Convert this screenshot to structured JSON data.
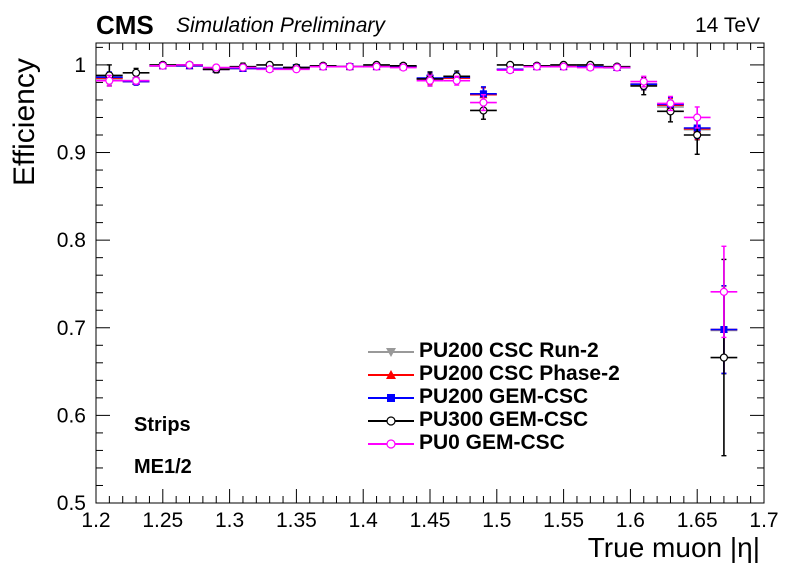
{
  "header": {
    "experiment": "CMS",
    "status": "Simulation Preliminary",
    "energy": "14 TeV"
  },
  "annotations": {
    "strips": "Strips",
    "station": "ME1/2"
  },
  "chart_data": {
    "type": "scatter",
    "title": "",
    "xlabel": "True muon |η|",
    "ylabel": "Efficiency",
    "xlim": [
      1.2,
      1.7
    ],
    "ylim": [
      0.5,
      1.025
    ],
    "xticks": [
      1.2,
      1.25,
      1.3,
      1.35,
      1.4,
      1.45,
      1.5,
      1.55,
      1.6,
      1.65,
      1.7
    ],
    "xtick_labels": [
      "1.2",
      "1.25",
      "1.3",
      "1.35",
      "1.4",
      "1.45",
      "1.5",
      "1.55",
      "1.6",
      "1.65",
      "1.7"
    ],
    "yticks": [
      0.5,
      0.6,
      0.7,
      0.8,
      0.9,
      1.0
    ],
    "ytick_labels": [
      "0.5",
      "0.6",
      "0.7",
      "0.8",
      "0.9",
      "1"
    ],
    "grid": false,
    "legend_position": "bottom-center",
    "series": [
      {
        "name": "PU200 CSC Run-2",
        "color": "#999999",
        "marker": "triangle-down",
        "x": [
          1.21,
          1.23,
          1.25,
          1.27,
          1.29,
          1.31,
          1.33,
          1.35,
          1.37,
          1.39,
          1.41,
          1.43,
          1.45,
          1.47,
          1.49,
          1.51,
          1.53,
          1.55,
          1.57,
          1.59,
          1.61,
          1.63,
          1.65,
          1.67
        ],
        "y": [
          0.984,
          0.982,
          0.999,
          0.999,
          0.995,
          0.996,
          0.996,
          0.997,
          0.998,
          0.998,
          0.998,
          0.998,
          0.984,
          0.985,
          0.966,
          0.995,
          0.998,
          0.998,
          0.998,
          0.997,
          0.977,
          0.952,
          0.926,
          0.697
        ],
        "yerr": [
          0.006,
          0.004,
          0.002,
          0.002,
          0.003,
          0.003,
          0.003,
          0.003,
          0.002,
          0.002,
          0.002,
          0.002,
          0.006,
          0.005,
          0.008,
          0.003,
          0.002,
          0.002,
          0.002,
          0.002,
          0.006,
          0.008,
          0.012,
          0.05
        ]
      },
      {
        "name": "PU200 CSC Phase-2",
        "color": "#ff0000",
        "marker": "triangle-up",
        "x": [
          1.21,
          1.23,
          1.25,
          1.27,
          1.29,
          1.31,
          1.33,
          1.35,
          1.37,
          1.39,
          1.41,
          1.43,
          1.45,
          1.47,
          1.49,
          1.51,
          1.53,
          1.55,
          1.57,
          1.59,
          1.61,
          1.63,
          1.65,
          1.67
        ],
        "y": [
          0.985,
          0.981,
          0.999,
          0.999,
          0.995,
          0.996,
          0.996,
          0.997,
          0.998,
          0.998,
          0.998,
          0.998,
          0.984,
          0.985,
          0.966,
          0.995,
          0.998,
          0.998,
          0.998,
          0.997,
          0.978,
          0.954,
          0.927,
          0.698
        ],
        "yerr": [
          0.006,
          0.004,
          0.002,
          0.002,
          0.003,
          0.003,
          0.003,
          0.003,
          0.002,
          0.002,
          0.002,
          0.002,
          0.006,
          0.005,
          0.008,
          0.003,
          0.002,
          0.002,
          0.002,
          0.002,
          0.006,
          0.008,
          0.012,
          0.05
        ]
      },
      {
        "name": "PU200 GEM-CSC",
        "color": "#0000ff",
        "marker": "square",
        "x": [
          1.21,
          1.23,
          1.25,
          1.27,
          1.29,
          1.31,
          1.33,
          1.35,
          1.37,
          1.39,
          1.41,
          1.43,
          1.45,
          1.47,
          1.49,
          1.51,
          1.53,
          1.55,
          1.57,
          1.59,
          1.61,
          1.63,
          1.65,
          1.67
        ],
        "y": [
          0.986,
          0.981,
          0.999,
          0.999,
          0.995,
          0.996,
          0.996,
          0.997,
          0.998,
          0.998,
          0.998,
          0.998,
          0.985,
          0.986,
          0.967,
          0.995,
          0.998,
          0.998,
          0.998,
          0.997,
          0.978,
          0.955,
          0.928,
          0.698
        ],
        "yerr": [
          0.006,
          0.004,
          0.002,
          0.002,
          0.003,
          0.003,
          0.003,
          0.003,
          0.002,
          0.002,
          0.002,
          0.002,
          0.006,
          0.005,
          0.008,
          0.003,
          0.002,
          0.002,
          0.002,
          0.002,
          0.006,
          0.008,
          0.012,
          0.05
        ]
      },
      {
        "name": "PU300 GEM-CSC",
        "color": "#000000",
        "marker": "circle-open",
        "x": [
          1.21,
          1.23,
          1.25,
          1.27,
          1.29,
          1.31,
          1.33,
          1.35,
          1.37,
          1.39,
          1.41,
          1.43,
          1.45,
          1.47,
          1.49,
          1.51,
          1.53,
          1.55,
          1.57,
          1.59,
          1.61,
          1.63,
          1.65,
          1.67
        ],
        "y": [
          0.988,
          0.991,
          1.0,
          1.0,
          0.995,
          0.998,
          1.0,
          0.997,
          0.999,
          0.998,
          1.0,
          0.999,
          0.984,
          0.987,
          0.948,
          1.0,
          0.999,
          1.0,
          1.0,
          0.998,
          0.976,
          0.947,
          0.92,
          0.666
        ],
        "yerr": [
          0.012,
          0.005,
          0.002,
          0.002,
          0.004,
          0.004,
          0.002,
          0.003,
          0.002,
          0.002,
          0.002,
          0.002,
          0.008,
          0.006,
          0.01,
          0.002,
          0.002,
          0.002,
          0.002,
          0.002,
          0.01,
          0.012,
          0.022,
          0.112
        ]
      },
      {
        "name": "PU0 GEM-CSC",
        "color": "#ff00ff",
        "marker": "circle-open",
        "x": [
          1.21,
          1.23,
          1.25,
          1.27,
          1.29,
          1.31,
          1.33,
          1.35,
          1.37,
          1.39,
          1.41,
          1.43,
          1.45,
          1.47,
          1.49,
          1.51,
          1.53,
          1.55,
          1.57,
          1.59,
          1.61,
          1.63,
          1.65,
          1.67
        ],
        "y": [
          0.982,
          0.982,
          0.999,
          1.0,
          0.997,
          0.997,
          0.995,
          0.995,
          0.998,
          0.998,
          0.998,
          0.997,
          0.982,
          0.982,
          0.957,
          0.994,
          0.998,
          0.998,
          0.997,
          0.997,
          0.981,
          0.956,
          0.94,
          0.741
        ],
        "yerr": [
          0.006,
          0.004,
          0.002,
          0.002,
          0.003,
          0.003,
          0.003,
          0.003,
          0.002,
          0.002,
          0.002,
          0.002,
          0.006,
          0.005,
          0.009,
          0.003,
          0.002,
          0.002,
          0.002,
          0.002,
          0.006,
          0.008,
          0.012,
          0.052
        ]
      }
    ]
  }
}
